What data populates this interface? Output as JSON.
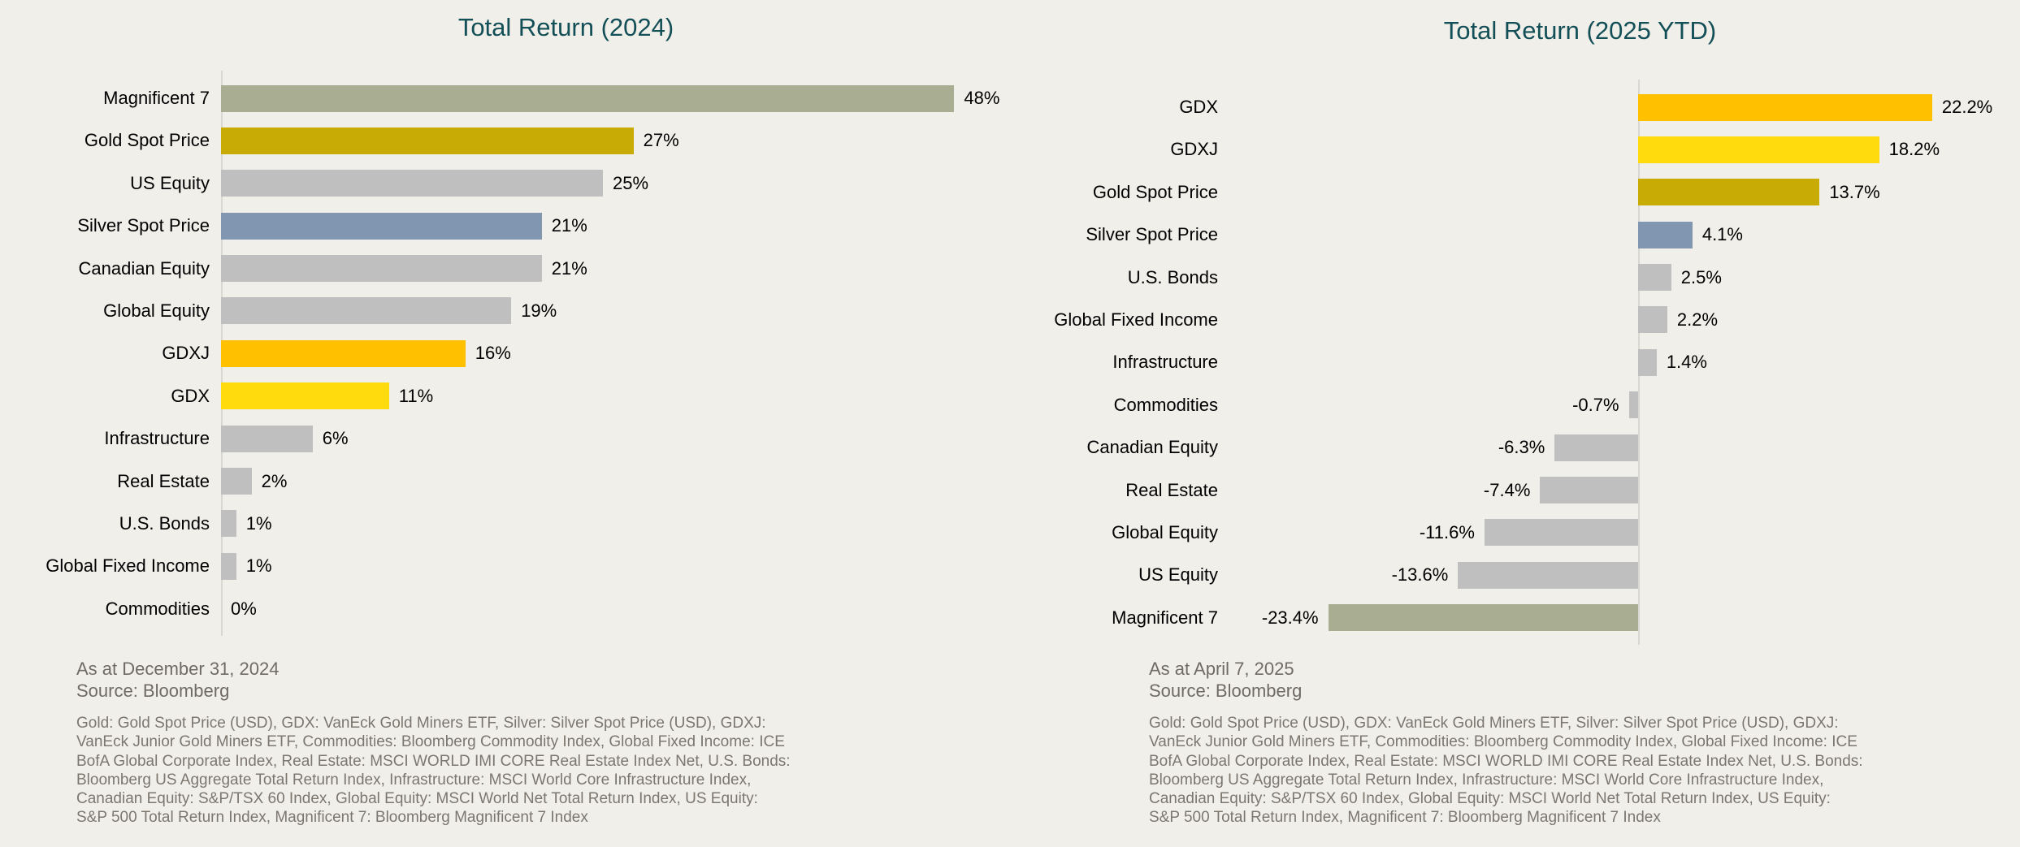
{
  "chart_data": [
    {
      "type": "bar",
      "orientation": "horizontal",
      "title": "Total Return (2024)",
      "categories": [
        "Magnificent 7",
        "Gold Spot Price",
        "US Equity",
        "Silver Spot Price",
        "Canadian Equity",
        "Global Equity",
        "GDXJ",
        "GDX",
        "Infrastructure",
        "Real Estate",
        "U.S. Bonds",
        "Global Fixed Income",
        "Commodities"
      ],
      "values": [
        48,
        27,
        25,
        21,
        21,
        19,
        16,
        11,
        6,
        2,
        1,
        1,
        0
      ],
      "value_labels": [
        "48%",
        "27%",
        "25%",
        "21%",
        "21%",
        "19%",
        "16%",
        "11%",
        "6%",
        "2%",
        "1%",
        "1%",
        "0%"
      ],
      "bar_colors": [
        "#A9AE92",
        "#C9AB06",
        "#BFBFBF",
        "#8096B1",
        "#BFBFBF",
        "#BFBFBF",
        "#FFC000",
        "#FFDB0D",
        "#BFBFBF",
        "#BFBFBF",
        "#BFBFBF",
        "#BFBFBF",
        "#BFBFBF"
      ],
      "xlim": [
        0,
        51
      ],
      "grid": false,
      "legend": "none",
      "as_at": "As at December 31, 2024",
      "source": "Source: Bloomberg",
      "description_lines": [
        "Gold: Gold Spot Price (USD), GDX: VanEck Gold Miners ETF, Silver: Silver Spot Price (USD), GDXJ:",
        "VanEck Junior Gold Miners ETF, Commodities: Bloomberg Commodity Index, Global Fixed Income: ICE",
        "BofA Global Corporate Index, Real Estate: MSCI WORLD IMI CORE Real Estate Index Net, U.S. Bonds:",
        "Bloomberg US Aggregate Total Return Index, Infrastructure: MSCI World Core Infrastructure Index,",
        "Canadian Equity: S&P/TSX 60 Index, Global Equity: MSCI World Net Total Return Index, US Equity:",
        "S&P 500 Total Return Index, Magnificent 7: Bloomberg Magnificent 7 Index"
      ]
    },
    {
      "type": "bar",
      "orientation": "horizontal",
      "title": "Total Return (2025 YTD)",
      "categories": [
        "GDX",
        "GDXJ",
        "Gold Spot Price",
        "Silver Spot Price",
        "U.S. Bonds",
        "Global Fixed Income",
        "Infrastructure",
        "Commodities",
        "Canadian Equity",
        "Real Estate",
        "Global Equity",
        "US Equity",
        "Magnificent 7"
      ],
      "values": [
        22.2,
        18.2,
        13.7,
        4.1,
        2.5,
        2.2,
        1.4,
        -0.7,
        -6.3,
        -7.4,
        -11.6,
        -13.6,
        -23.4
      ],
      "value_labels": [
        "22.2%",
        "18.2%",
        "13.7%",
        "4.1%",
        "2.5%",
        "2.2%",
        "1.4%",
        "-0.7%",
        "-6.3%",
        "-7.4%",
        "-11.6%",
        "-13.6%",
        "-23.4%"
      ],
      "bar_colors": [
        "#FFC000",
        "#FFDB0D",
        "#C9AB06",
        "#8096B1",
        "#BFBFBF",
        "#BFBFBF",
        "#BFBFBF",
        "#BFBFBF",
        "#BFBFBF",
        "#BFBFBF",
        "#BFBFBF",
        "#BFBFBF",
        "#A9AE92"
      ],
      "xlim": [
        -26,
        25
      ],
      "grid": false,
      "legend": "none",
      "as_at": "As at April 7, 2025",
      "source": "Source: Bloomberg",
      "description_lines": [
        "Gold: Gold Spot Price (USD), GDX: VanEck Gold Miners ETF, Silver: Silver Spot Price (USD), GDXJ:",
        "VanEck Junior Gold Miners ETF, Commodities: Bloomberg Commodity Index, Global Fixed Income: ICE",
        "BofA Global Corporate Index, Real Estate: MSCI WORLD IMI CORE Real Estate Index Net, U.S. Bonds:",
        "Bloomberg US Aggregate Total Return Index, Infrastructure: MSCI World Core Infrastructure Index,",
        "Canadian Equity: S&P/TSX 60 Index, Global Equity: MSCI World Net Total Return Index, US Equity:",
        "S&P 500 Total Return Index, Magnificent 7: Bloomberg Magnificent 7 Index"
      ]
    }
  ],
  "colors": {
    "background": "#F1EFEA",
    "title": "#134F57",
    "axis_line": "#D9D7D2",
    "bar_gray": "#BFBFBF",
    "bar_sage_green": "#A9AE92",
    "bar_dark_gold": "#C9AB06",
    "bar_amber": "#FFC000",
    "bar_yellow": "#FFDB0D",
    "bar_slate_blue": "#8096B1",
    "footnote_text": "#7B776F"
  }
}
